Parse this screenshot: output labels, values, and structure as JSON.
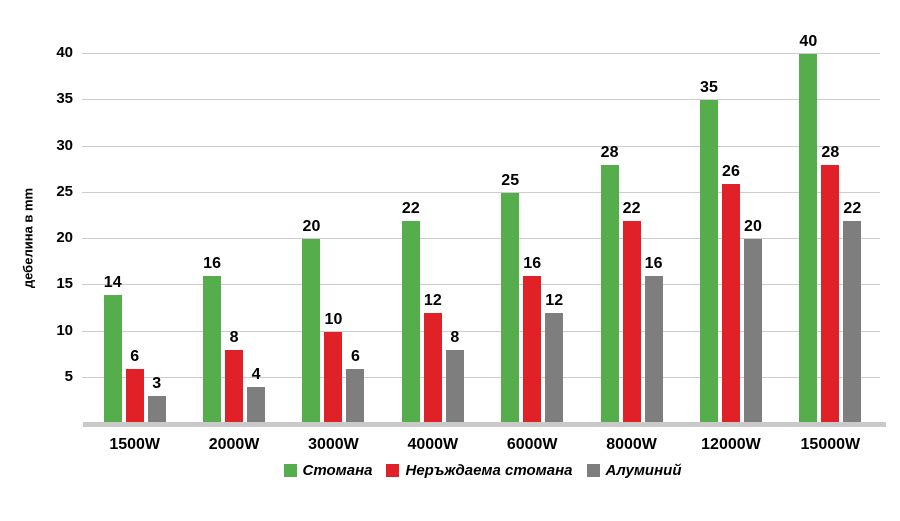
{
  "chart_data": {
    "type": "bar",
    "title": "",
    "xlabel": "",
    "ylabel": "дебелина в mm",
    "ylim": [
      0,
      40
    ],
    "yticks": [
      5,
      10,
      15,
      20,
      25,
      30,
      35,
      40
    ],
    "grid": "horizontal",
    "legend_position": "bottom-center",
    "categories": [
      "1500W",
      "2000W",
      "3000W",
      "4000W",
      "6000W",
      "8000W",
      "12000W",
      "15000W"
    ],
    "series": [
      {
        "name": "Стомана",
        "color": "#55ae4b",
        "values": [
          14,
          16,
          20,
          22,
          25,
          28,
          35,
          40
        ]
      },
      {
        "name": "Неръждаема стомана",
        "color": "#e02128",
        "values": [
          6,
          8,
          10,
          12,
          16,
          22,
          26,
          28
        ]
      },
      {
        "name": "Алуминий",
        "color": "#7e7e7e",
        "values": [
          3,
          4,
          6,
          8,
          12,
          16,
          20,
          22
        ]
      }
    ]
  },
  "colors": {
    "background": "#ffffff",
    "gridline": "#cccccc",
    "axis_line": "#c9c9c9",
    "text": "#000000"
  }
}
